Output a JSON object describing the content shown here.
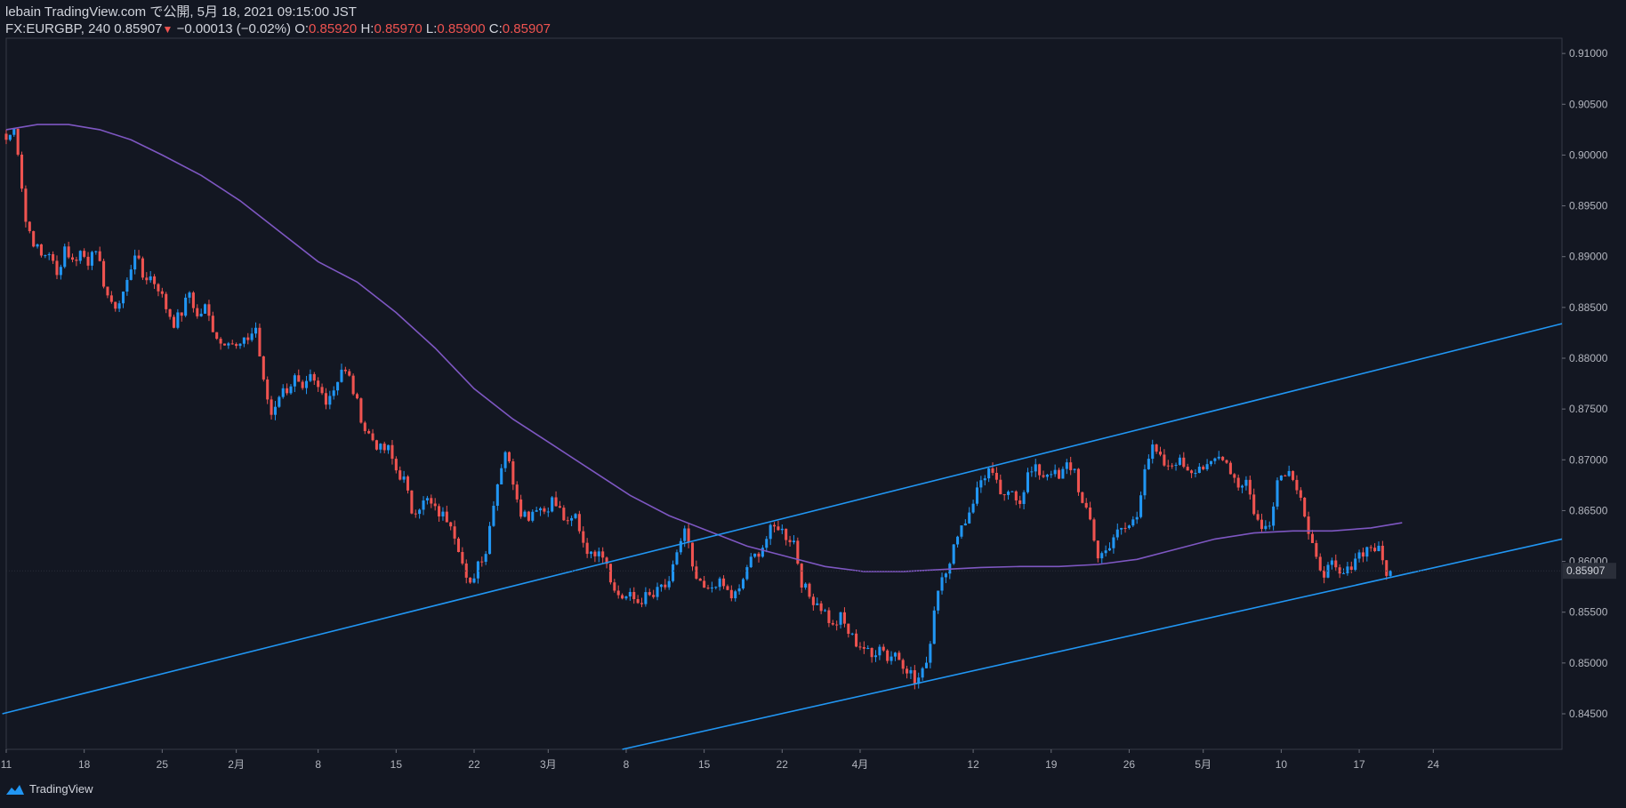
{
  "header": {
    "publish_line": "lebain TradingView.com で公開, 5月 18, 2021 09:15:00 JST",
    "symbol": "FX:EURGBP, 240",
    "last": "0.85907",
    "change_arrow": "▼",
    "change": "−0.00013 (−0.02%)",
    "o_label": "O:",
    "o_value": "0.85920",
    "h_label": "H:",
    "h_value": "0.85970",
    "l_label": "L:",
    "l_value": "0.85900",
    "c_label": "C:",
    "c_value": "0.85907"
  },
  "footer": {
    "brand": "TradingView"
  },
  "colors": {
    "background": "#131722",
    "up": "#2196f3",
    "down": "#ef5350",
    "ma": "#7e57c2",
    "trendline": "#2196f3",
    "axis_text": "#b2b5be"
  },
  "chart_data": {
    "type": "candlestick",
    "symbol": "FX:EURGBP",
    "timeframe": "240",
    "ylim": [
      0.8415,
      0.9115
    ],
    "y_ticks": [
      "0.91000",
      "0.90500",
      "0.90000",
      "0.89500",
      "0.89000",
      "0.88500",
      "0.88000",
      "0.87500",
      "0.87000",
      "0.86500",
      "0.86000",
      "0.85500",
      "0.85000",
      "0.84500"
    ],
    "x_ticks": [
      "11",
      "18",
      "25",
      "2月",
      "8",
      "15",
      "22",
      "3月",
      "8",
      "15",
      "22",
      "4月",
      "12",
      "19",
      "26",
      "5月",
      "10",
      "17",
      "24"
    ],
    "last_price_label": "0.85907",
    "anchors": [
      [
        0,
        0.9015
      ],
      [
        2,
        0.9025
      ],
      [
        3,
        0.9005
      ],
      [
        5,
        0.8935
      ],
      [
        7,
        0.8915
      ],
      [
        9,
        0.89
      ],
      [
        11,
        0.8905
      ],
      [
        13,
        0.888
      ],
      [
        15,
        0.891
      ],
      [
        17,
        0.8895
      ],
      [
        19,
        0.8905
      ],
      [
        21,
        0.8895
      ],
      [
        22,
        0.891
      ],
      [
        24,
        0.889
      ],
      [
        25,
        0.8875
      ],
      [
        27,
        0.885
      ],
      [
        29,
        0.8855
      ],
      [
        31,
        0.8875
      ],
      [
        33,
        0.8905
      ],
      [
        35,
        0.888
      ],
      [
        37,
        0.888
      ],
      [
        39,
        0.887
      ],
      [
        41,
        0.885
      ],
      [
        43,
        0.8835
      ],
      [
        45,
        0.8845
      ],
      [
        47,
        0.8865
      ],
      [
        49,
        0.884
      ],
      [
        51,
        0.885
      ],
      [
        53,
        0.883
      ],
      [
        55,
        0.8815
      ],
      [
        57,
        0.882
      ],
      [
        59,
        0.881
      ],
      [
        61,
        0.8815
      ],
      [
        63,
        0.8825
      ],
      [
        64,
        0.883
      ],
      [
        66,
        0.8775
      ],
      [
        68,
        0.8745
      ],
      [
        70,
        0.8765
      ],
      [
        72,
        0.877
      ],
      [
        74,
        0.878
      ],
      [
        76,
        0.8765
      ],
      [
        78,
        0.878
      ],
      [
        80,
        0.877
      ],
      [
        82,
        0.876
      ],
      [
        84,
        0.877
      ],
      [
        86,
        0.879
      ],
      [
        88,
        0.878
      ],
      [
        90,
        0.8755
      ],
      [
        92,
        0.873
      ],
      [
        94,
        0.872
      ],
      [
        96,
        0.871
      ],
      [
        98,
        0.871
      ],
      [
        100,
        0.869
      ],
      [
        102,
        0.868
      ],
      [
        104,
        0.865
      ],
      [
        106,
        0.8655
      ],
      [
        108,
        0.866
      ],
      [
        110,
        0.865
      ],
      [
        112,
        0.8645
      ],
      [
        114,
        0.864
      ],
      [
        116,
        0.8615
      ],
      [
        118,
        0.858
      ],
      [
        119,
        0.8575
      ],
      [
        121,
        0.86
      ],
      [
        123,
        0.861
      ],
      [
        125,
        0.866
      ],
      [
        127,
        0.8695
      ],
      [
        128,
        0.871
      ],
      [
        130,
        0.868
      ],
      [
        132,
        0.865
      ],
      [
        134,
        0.8645
      ],
      [
        136,
        0.8655
      ],
      [
        138,
        0.865
      ],
      [
        140,
        0.866
      ],
      [
        142,
        0.865
      ],
      [
        144,
        0.8635
      ],
      [
        146,
        0.8645
      ],
      [
        148,
        0.862
      ],
      [
        150,
        0.8605
      ],
      [
        152,
        0.8615
      ],
      [
        154,
        0.86
      ],
      [
        156,
        0.857
      ],
      [
        158,
        0.8565
      ],
      [
        160,
        0.8565
      ],
      [
        162,
        0.856
      ],
      [
        164,
        0.8565
      ],
      [
        166,
        0.8565
      ],
      [
        168,
        0.8575
      ],
      [
        170,
        0.8575
      ],
      [
        172,
        0.861
      ],
      [
        174,
        0.863
      ],
      [
        175,
        0.8615
      ],
      [
        176,
        0.859
      ],
      [
        178,
        0.8575
      ],
      [
        180,
        0.857
      ],
      [
        182,
        0.858
      ],
      [
        184,
        0.8575
      ],
      [
        186,
        0.8565
      ],
      [
        188,
        0.857
      ],
      [
        190,
        0.8595
      ],
      [
        192,
        0.8605
      ],
      [
        194,
        0.8615
      ],
      [
        196,
        0.863
      ],
      [
        198,
        0.8635
      ],
      [
        200,
        0.8625
      ],
      [
        202,
        0.862
      ],
      [
        204,
        0.858
      ],
      [
        206,
        0.8565
      ],
      [
        208,
        0.856
      ],
      [
        210,
        0.855
      ],
      [
        212,
        0.8535
      ],
      [
        214,
        0.8545
      ],
      [
        216,
        0.853
      ],
      [
        218,
        0.852
      ],
      [
        220,
        0.8515
      ],
      [
        222,
        0.8505
      ],
      [
        224,
        0.852
      ],
      [
        226,
        0.8505
      ],
      [
        228,
        0.851
      ],
      [
        230,
        0.85
      ],
      [
        232,
        0.849
      ],
      [
        233,
        0.848
      ],
      [
        235,
        0.849
      ],
      [
        237,
        0.852
      ],
      [
        238,
        0.8555
      ],
      [
        240,
        0.859
      ],
      [
        242,
        0.8595
      ],
      [
        244,
        0.863
      ],
      [
        246,
        0.864
      ],
      [
        248,
        0.866
      ],
      [
        250,
        0.868
      ],
      [
        252,
        0.869
      ],
      [
        254,
        0.8675
      ],
      [
        256,
        0.866
      ],
      [
        258,
        0.867
      ],
      [
        260,
        0.866
      ],
      [
        262,
        0.8685
      ],
      [
        264,
        0.869
      ],
      [
        266,
        0.8685
      ],
      [
        268,
        0.869
      ],
      [
        270,
        0.868
      ],
      [
        272,
        0.8695
      ],
      [
        274,
        0.869
      ],
      [
        276,
        0.8655
      ],
      [
        278,
        0.864
      ],
      [
        280,
        0.8605
      ],
      [
        282,
        0.861
      ],
      [
        284,
        0.8625
      ],
      [
        286,
        0.863
      ],
      [
        288,
        0.8635
      ],
      [
        290,
        0.8645
      ],
      [
        292,
        0.8695
      ],
      [
        294,
        0.871
      ],
      [
        296,
        0.87
      ],
      [
        298,
        0.869
      ],
      [
        300,
        0.87
      ],
      [
        302,
        0.8695
      ],
      [
        304,
        0.869
      ],
      [
        306,
        0.8695
      ],
      [
        308,
        0.869
      ],
      [
        310,
        0.87
      ],
      [
        312,
        0.8705
      ],
      [
        314,
        0.869
      ],
      [
        316,
        0.8675
      ],
      [
        318,
        0.868
      ],
      [
        320,
        0.865
      ],
      [
        322,
        0.863
      ],
      [
        324,
        0.864
      ],
      [
        326,
        0.868
      ],
      [
        328,
        0.869
      ],
      [
        330,
        0.8685
      ],
      [
        332,
        0.8665
      ],
      [
        334,
        0.8625
      ],
      [
        336,
        0.86
      ],
      [
        338,
        0.859
      ],
      [
        340,
        0.8595
      ],
      [
        342,
        0.8585
      ],
      [
        344,
        0.859
      ],
      [
        346,
        0.8605
      ],
      [
        348,
        0.861
      ],
      [
        350,
        0.8615
      ],
      [
        352,
        0.861
      ],
      [
        354,
        0.859
      ],
      [
        355,
        0.85907
      ]
    ],
    "ma_200": [
      [
        0,
        0.9025
      ],
      [
        8,
        0.903
      ],
      [
        16,
        0.903
      ],
      [
        24,
        0.9025
      ],
      [
        32,
        0.9015
      ],
      [
        40,
        0.9
      ],
      [
        50,
        0.898
      ],
      [
        60,
        0.8955
      ],
      [
        70,
        0.8925
      ],
      [
        80,
        0.8895
      ],
      [
        90,
        0.8875
      ],
      [
        100,
        0.8845
      ],
      [
        110,
        0.881
      ],
      [
        120,
        0.877
      ],
      [
        130,
        0.874
      ],
      [
        140,
        0.8715
      ],
      [
        150,
        0.869
      ],
      [
        160,
        0.8665
      ],
      [
        170,
        0.8645
      ],
      [
        180,
        0.863
      ],
      [
        190,
        0.8615
      ],
      [
        200,
        0.8605
      ],
      [
        210,
        0.8595
      ],
      [
        220,
        0.859
      ],
      [
        230,
        0.859
      ],
      [
        240,
        0.8592
      ],
      [
        250,
        0.8594
      ],
      [
        260,
        0.8595
      ],
      [
        270,
        0.8595
      ],
      [
        280,
        0.8597
      ],
      [
        290,
        0.8602
      ],
      [
        300,
        0.8612
      ],
      [
        310,
        0.8622
      ],
      [
        320,
        0.8628
      ],
      [
        330,
        0.863
      ],
      [
        340,
        0.863
      ],
      [
        350,
        0.8633
      ],
      [
        358,
        0.8638
      ]
    ],
    "trendlines": [
      {
        "name": "upper-channel",
        "from": [
          -1,
          0.845
        ],
        "to": [
          399,
          0.8834
        ]
      },
      {
        "name": "lower-channel",
        "from": [
          158,
          0.8415
        ],
        "to": [
          399,
          0.8622
        ]
      }
    ],
    "axis_bars_extent": 399,
    "x_tick_bars": [
      0,
      20,
      40,
      59,
      80,
      100,
      120,
      139,
      159,
      179,
      199,
      219,
      248,
      268,
      288,
      307,
      327,
      347,
      366
    ]
  }
}
